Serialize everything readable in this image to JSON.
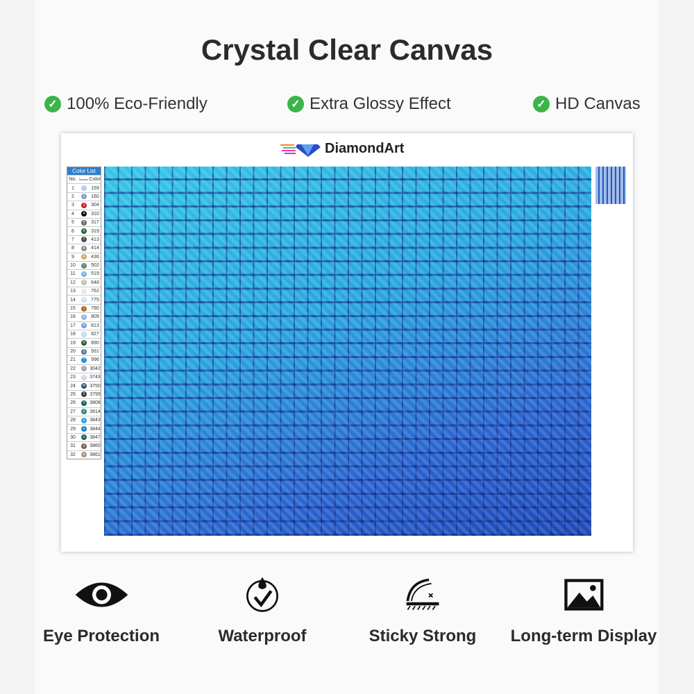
{
  "title": "Crystal Clear Canvas",
  "features": [
    "100% Eco-Friendly",
    "Extra Glossy Effect",
    "HD Canvas"
  ],
  "brand": "DiamondArt",
  "color_list": {
    "title": "Color List",
    "headers": [
      "No.",
      "Symbol",
      "Color"
    ],
    "rows": [
      [
        "1",
        "1",
        "159",
        "#b8c8e8"
      ],
      [
        "2",
        "2",
        "160",
        "#7f9bd0"
      ],
      [
        "3",
        "3",
        "304",
        "#c41e2a"
      ],
      [
        "4",
        "4",
        "310",
        "#111111"
      ],
      [
        "5",
        "5",
        "317",
        "#6c6c6c"
      ],
      [
        "6",
        "6",
        "319",
        "#1d6a3a"
      ],
      [
        "7",
        "7",
        "413",
        "#4a4a4a"
      ],
      [
        "8",
        "8",
        "414",
        "#8a8a8a"
      ],
      [
        "9",
        "A",
        "436",
        "#d2a560"
      ],
      [
        "10",
        "C",
        "502",
        "#4a8a6a"
      ],
      [
        "11",
        "D",
        "519",
        "#6fb0e0"
      ],
      [
        "12",
        "F",
        "648",
        "#c0c0b0"
      ],
      [
        "13",
        "G",
        "762",
        "#e6e6e6"
      ],
      [
        "14",
        "H",
        "775",
        "#c8dff0"
      ],
      [
        "15",
        "J",
        "780",
        "#a86a20"
      ],
      [
        "16",
        "K",
        "809",
        "#90b0e8"
      ],
      [
        "17",
        "N",
        "813",
        "#6fa0d8"
      ],
      [
        "18",
        "Q",
        "827",
        "#b8d8ee"
      ],
      [
        "19",
        "R",
        "890",
        "#1e5a30"
      ],
      [
        "20",
        "S",
        "931",
        "#5a7890"
      ],
      [
        "21",
        "T",
        "996",
        "#1e90e0"
      ],
      [
        "22",
        "U",
        "3042",
        "#a898a8"
      ],
      [
        "23",
        "V",
        "3743",
        "#d8d0e0"
      ],
      [
        "24",
        "W",
        "3750",
        "#2a4860"
      ],
      [
        "25",
        "X",
        "3799",
        "#3a3a3a"
      ],
      [
        "26",
        "Y",
        "3808",
        "#1a6060"
      ],
      [
        "27",
        "Z",
        "3814",
        "#2a8878"
      ],
      [
        "28",
        "a",
        "3843",
        "#20a0e8"
      ],
      [
        "29",
        "b",
        "3844",
        "#1080c0"
      ],
      [
        "30",
        "c",
        "3847",
        "#1a6a60"
      ],
      [
        "31",
        "d",
        "3860",
        "#7a5a50"
      ],
      [
        "32",
        "e",
        "3861",
        "#b09080"
      ]
    ]
  },
  "bottom_features": [
    {
      "label": "Eye Protection",
      "icon": "eye-icon"
    },
    {
      "label": "Waterproof",
      "icon": "waterproof-icon"
    },
    {
      "label": "Sticky Strong",
      "icon": "sticky-icon"
    },
    {
      "label": "Long-term Display",
      "icon": "image-icon"
    }
  ],
  "colors": {
    "check": "#3cb44a",
    "canvas_light": "#35c6e6",
    "canvas_dark": "#1d48b8",
    "list_header": "#2e7fd0"
  }
}
